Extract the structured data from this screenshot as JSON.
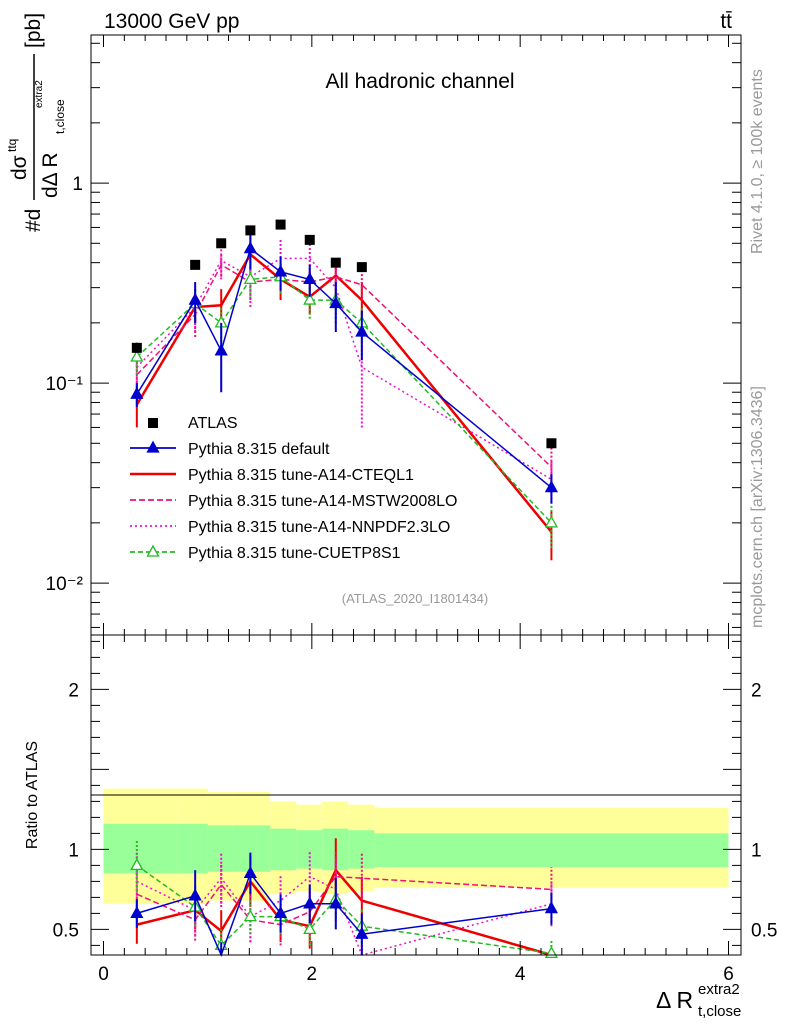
{
  "header": {
    "beam_label": "13000 GeV pp",
    "process_label": "tt̄"
  },
  "side_labels": {
    "rivet": "Rivet 4.1.0, ≥ 100k events",
    "mcplots": "mcplots.cern.ch [arXiv:1306.3436]"
  },
  "chart_data": [
    {
      "panel": "main",
      "type": "line",
      "title": "All hadronic channel",
      "watermark": "(ATLAS_2020_I1801434)",
      "ylabel": "#dσ^{ttq} / dΔR_{t,close}^{extra2} [pb]",
      "ylabel_parts": {
        "prefix": "#d",
        "numerator": "dσ",
        "numerator_sup": "ttq",
        "denominator": "dΔ R",
        "denominator_sub": "t,close",
        "denominator_sup": "extra2",
        "unit": "[pb]"
      },
      "yscale": "log",
      "ylim": [
        0.0055,
        5.5
      ],
      "xlim": [
        -0.12,
        6.12
      ],
      "y_tick_labels": [
        {
          "value": 1,
          "label": "1"
        },
        {
          "value": 0.1,
          "label": "10⁻¹"
        },
        {
          "value": 0.01,
          "label": "10⁻²"
        }
      ],
      "legend": {
        "position": "lower-left",
        "entries": [
          "ATLAS",
          "Pythia 8.315 default",
          "Pythia 8.315 tune-A14-CTEQL1",
          "Pythia 8.315 tune-A14-MSTW2008LO",
          "Pythia 8.315 tune-A14-NNPDF2.3LO",
          "Pythia 8.315 tune-CUETP8S1"
        ]
      },
      "series": [
        {
          "name": "ATLAS",
          "kind": "data",
          "color": "#000000",
          "x": [
            0.32,
            0.88,
            1.13,
            1.41,
            1.7,
            1.98,
            2.23,
            2.48,
            4.3
          ],
          "y": [
            0.15,
            0.39,
            0.5,
            0.58,
            0.62,
            0.52,
            0.4,
            0.38,
            0.05
          ]
        },
        {
          "name": "Pythia 8.315 default",
          "color": "#0000cc",
          "dash": "",
          "marker": "triangle-filled",
          "x": [
            0.32,
            0.88,
            1.13,
            1.41,
            1.7,
            1.98,
            2.23,
            2.48,
            4.3
          ],
          "y": [
            0.088,
            0.26,
            0.145,
            0.47,
            0.36,
            0.33,
            0.25,
            0.18,
            0.03
          ],
          "err": [
            0.012,
            0.06,
            0.055,
            0.1,
            0.07,
            0.06,
            0.07,
            0.05,
            0.005
          ]
        },
        {
          "name": "Pythia 8.315 tune-A14-CTEQL1",
          "color": "#ee0000",
          "dash": "",
          "marker": "none",
          "x": [
            0.32,
            0.88,
            1.13,
            1.41,
            1.7,
            1.98,
            2.23,
            2.48,
            4.3
          ],
          "y": [
            0.078,
            0.24,
            0.245,
            0.44,
            0.33,
            0.27,
            0.345,
            0.26,
            0.018
          ],
          "err": [
            0.018,
            0.04,
            0.05,
            0.1,
            0.07,
            0.05,
            0.07,
            0.06,
            0.005
          ]
        },
        {
          "name": "Pythia 8.315 tune-A14-MSTW2008LO",
          "color": "#ee1177",
          "dash": "6,3",
          "marker": "none",
          "x": [
            0.32,
            0.88,
            1.13,
            1.41,
            1.7,
            1.98,
            2.23,
            2.48,
            4.3
          ],
          "y": [
            0.11,
            0.22,
            0.39,
            0.32,
            0.33,
            0.32,
            0.34,
            0.31,
            0.038
          ],
          "err": [
            0.03,
            0.05,
            0.05,
            0.06,
            0.05,
            0.05,
            0.05,
            0.05,
            0.01
          ]
        },
        {
          "name": "Pythia 8.315 tune-A14-NNPDF2.3LO",
          "color": "#ee11cc",
          "dash": "2,3",
          "marker": "none",
          "x": [
            0.32,
            0.88,
            1.13,
            1.41,
            1.7,
            1.98,
            2.23,
            2.48,
            4.3
          ],
          "y": [
            0.12,
            0.24,
            0.41,
            0.34,
            0.42,
            0.42,
            0.3,
            0.12,
            0.033
          ],
          "err": [
            0.03,
            0.06,
            0.08,
            0.1,
            0.1,
            0.1,
            0.1,
            0.06,
            0.008
          ]
        },
        {
          "name": "Pythia 8.315 tune-CUETP8S1",
          "color": "#22bb22",
          "dash": "5,3",
          "marker": "triangle-open",
          "x": [
            0.32,
            0.88,
            1.13,
            1.41,
            1.7,
            1.98,
            2.23,
            2.48,
            4.3
          ],
          "y": [
            0.135,
            0.25,
            0.2,
            0.33,
            0.34,
            0.26,
            0.26,
            0.2,
            0.02
          ],
          "err": [
            0.025,
            0.05,
            0.04,
            0.06,
            0.06,
            0.05,
            0.05,
            0.04,
            0.005
          ]
        }
      ]
    },
    {
      "panel": "ratio",
      "type": "line",
      "ylabel": "Ratio to ATLAS",
      "xlabel": "Δ R",
      "xlabel_sub": "t,close",
      "xlabel_sup": "extra2",
      "xlim": [
        -0.12,
        6.12
      ],
      "ylim": [
        0.34,
        2.34
      ],
      "x_ticks": [
        0,
        2,
        4,
        6
      ],
      "y_ticks": [
        0.5,
        1,
        2
      ],
      "bins": [
        0,
        0.7,
        1.0,
        1.25,
        1.6,
        1.85,
        2.1,
        2.35,
        2.6,
        6.0
      ],
      "band_outer_low": [
        0.66,
        0.66,
        0.68,
        0.68,
        0.72,
        0.74,
        0.72,
        0.74,
        0.76
      ],
      "band_outer_high": [
        1.38,
        1.38,
        1.36,
        1.36,
        1.3,
        1.28,
        1.3,
        1.28,
        1.26
      ],
      "band_inner_low": [
        0.85,
        0.85,
        0.86,
        0.86,
        0.87,
        0.88,
        0.87,
        0.88,
        0.89
      ],
      "band_inner_high": [
        1.16,
        1.16,
        1.15,
        1.15,
        1.13,
        1.12,
        1.13,
        1.12,
        1.1
      ],
      "band_colors": {
        "outer": "#ffff99",
        "inner": "#99ff99"
      },
      "series": [
        {
          "name": "Pythia 8.315 default",
          "color": "#0000cc",
          "dash": "",
          "marker": "triangle-filled",
          "x": [
            0.32,
            0.88,
            1.13,
            1.41,
            1.7,
            1.98,
            2.23,
            2.48,
            4.3
          ],
          "y": [
            0.6,
            0.71,
            0.3,
            0.85,
            0.6,
            0.66,
            0.66,
            0.47,
            0.63
          ],
          "err": [
            0.09,
            0.16,
            0.12,
            0.13,
            0.12,
            0.12,
            0.16,
            0.13,
            0.1
          ]
        },
        {
          "name": "Pythia 8.315 tune-A14-CTEQL1",
          "color": "#ee0000",
          "dash": "",
          "marker": "none",
          "x": [
            0.32,
            0.88,
            1.13,
            1.41,
            1.7,
            1.98,
            2.23,
            2.48,
            4.3
          ],
          "y": [
            0.53,
            0.62,
            0.49,
            0.8,
            0.56,
            0.52,
            0.87,
            0.68,
            0.28
          ],
          "err": [
            0.12,
            0.12,
            0.13,
            0.16,
            0.14,
            0.14,
            0.2,
            0.15,
            0.08
          ]
        },
        {
          "name": "Pythia 8.315 tune-A14-MSTW2008LO",
          "color": "#ee1177",
          "dash": "6,3",
          "marker": "none",
          "x": [
            0.32,
            0.88,
            1.13,
            1.41,
            1.7,
            1.98,
            2.23,
            2.48,
            4.3
          ],
          "y": [
            0.72,
            0.56,
            0.78,
            0.56,
            0.53,
            0.61,
            0.83,
            0.82,
            0.75
          ],
          "err": [
            0.16,
            0.13,
            0.14,
            0.14,
            0.13,
            0.13,
            0.16,
            0.16,
            0.14
          ]
        },
        {
          "name": "Pythia 8.315 tune-A14-NNPDF2.3LO",
          "color": "#ee11cc",
          "dash": "2,3",
          "marker": "none",
          "x": [
            0.32,
            0.88,
            1.13,
            1.41,
            1.7,
            1.98,
            2.23,
            2.48,
            4.3
          ],
          "y": [
            0.8,
            0.62,
            0.82,
            0.58,
            0.68,
            0.83,
            0.75,
            0.32,
            0.66
          ],
          "err": [
            0.18,
            0.16,
            0.16,
            0.16,
            0.16,
            0.16,
            0.2,
            0.16,
            0.14
          ]
        },
        {
          "name": "Pythia 8.315 tune-CUETP8S1",
          "color": "#22bb22",
          "dash": "5,3",
          "marker": "triangle-open",
          "x": [
            0.32,
            0.88,
            1.13,
            1.41,
            1.7,
            1.98,
            2.23,
            2.48,
            4.3
          ],
          "y": [
            0.9,
            0.64,
            0.4,
            0.58,
            0.58,
            0.5,
            0.69,
            0.52,
            0.35
          ],
          "err": [
            0.16,
            0.12,
            0.1,
            0.11,
            0.11,
            0.1,
            0.12,
            0.11,
            0.08
          ]
        }
      ]
    }
  ]
}
